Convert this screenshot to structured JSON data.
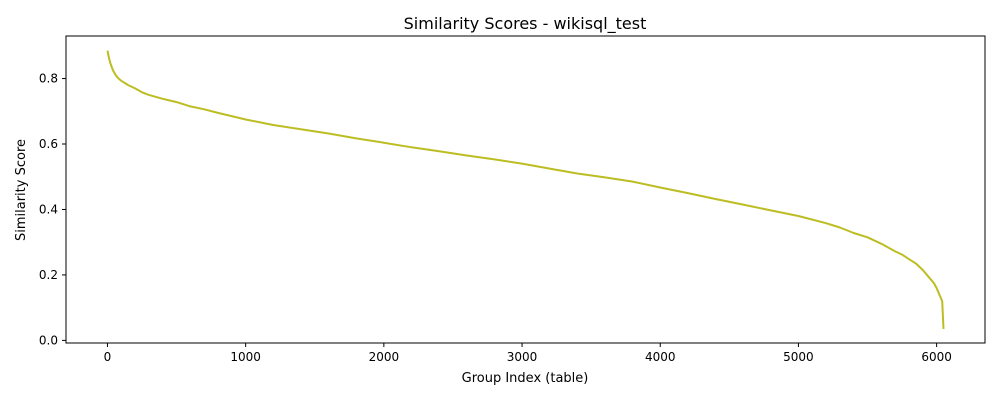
{
  "chart_data": {
    "type": "line",
    "title": "Similarity Scores - wikisql_test",
    "xlabel": "Group Index (table)",
    "ylabel": "Similarity Score",
    "xlim": [
      -300,
      6350
    ],
    "ylim": [
      -0.008,
      0.93
    ],
    "xticks": [
      0,
      1000,
      2000,
      3000,
      4000,
      5000,
      6000
    ],
    "yticks": [
      0.0,
      0.2,
      0.4,
      0.6,
      0.8
    ],
    "ytick_labels": [
      "0.0",
      "0.2",
      "0.4",
      "0.6",
      "0.8"
    ],
    "grid": false,
    "series": [
      {
        "color": "#bcbd22",
        "x": [
          0,
          10,
          20,
          40,
          60,
          80,
          100,
          150,
          200,
          250,
          300,
          400,
          500,
          600,
          700,
          800,
          1000,
          1200,
          1400,
          1600,
          1800,
          2000,
          2200,
          2400,
          2600,
          2800,
          3000,
          3200,
          3400,
          3600,
          3800,
          4000,
          4200,
          4400,
          4600,
          4800,
          5000,
          5200,
          5300,
          5400,
          5500,
          5600,
          5700,
          5750,
          5800,
          5850,
          5900,
          5950,
          5980,
          6000,
          6020,
          6040,
          6050
        ],
        "y": [
          0.885,
          0.865,
          0.848,
          0.825,
          0.81,
          0.8,
          0.793,
          0.78,
          0.77,
          0.758,
          0.75,
          0.738,
          0.728,
          0.715,
          0.706,
          0.695,
          0.675,
          0.658,
          0.645,
          0.632,
          0.617,
          0.604,
          0.59,
          0.578,
          0.565,
          0.553,
          0.54,
          0.525,
          0.51,
          0.498,
          0.485,
          0.467,
          0.45,
          0.432,
          0.415,
          0.397,
          0.38,
          0.358,
          0.345,
          0.328,
          0.315,
          0.295,
          0.272,
          0.262,
          0.248,
          0.235,
          0.215,
          0.19,
          0.175,
          0.16,
          0.14,
          0.12,
          0.035
        ]
      }
    ]
  }
}
